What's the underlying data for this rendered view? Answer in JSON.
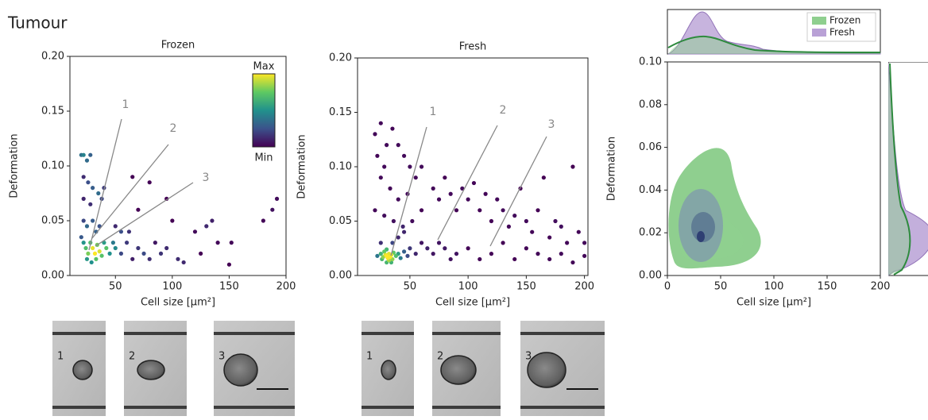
{
  "figure_title": "Tumour",
  "chart_data": [
    {
      "type": "scatter",
      "title": "Frozen",
      "xlabel": "Cell size [μm²]",
      "ylabel": "Deformation",
      "xlim": [
        10,
        200
      ],
      "ylim": [
        0,
        0.2
      ],
      "xticks": [
        50,
        100,
        150,
        200
      ],
      "yticks": [
        {
          "value": 0,
          "label": "0.00"
        },
        0.05,
        {
          "value": 0.1,
          "label": "0.10"
        },
        0.15,
        {
          "value": 0.2,
          "label": "0.20"
        }
      ],
      "colormap": [
        "#440154",
        "#3b528b",
        "#21918c",
        "#5ec962",
        "#fde725"
      ],
      "colorbar_labels": [
        "Max",
        "Min"
      ],
      "annotations": [
        "1",
        "2",
        "3"
      ],
      "x": [
        20,
        22,
        25,
        28,
        22,
        26,
        30,
        22,
        28,
        35,
        38,
        40,
        22,
        25,
        30,
        33,
        36,
        20,
        22,
        24,
        26,
        28,
        30,
        32,
        34,
        36,
        38,
        25,
        29,
        33,
        40,
        42,
        45,
        48,
        50,
        55,
        60,
        62,
        65,
        70,
        75,
        80,
        85,
        90,
        95,
        100,
        80,
        95,
        70,
        110,
        125,
        130,
        135,
        140,
        150,
        152,
        180,
        188,
        192,
        120,
        105,
        65,
        55,
        50
      ],
      "values": [
        0.11,
        0.11,
        0.105,
        0.11,
        0.09,
        0.085,
        0.08,
        0.07,
        0.065,
        0.075,
        0.07,
        0.08,
        0.05,
        0.045,
        0.05,
        0.04,
        0.045,
        0.035,
        0.03,
        0.025,
        0.02,
        0.03,
        0.025,
        0.02,
        0.028,
        0.022,
        0.018,
        0.015,
        0.012,
        0.015,
        0.03,
        0.025,
        0.02,
        0.03,
        0.025,
        0.02,
        0.03,
        0.04,
        0.015,
        0.025,
        0.02,
        0.015,
        0.03,
        0.02,
        0.025,
        0.05,
        0.085,
        0.07,
        0.06,
        0.012,
        0.02,
        0.045,
        0.05,
        0.03,
        0.01,
        0.03,
        0.05,
        0.06,
        0.07,
        0.04,
        0.015,
        0.09,
        0.04,
        0.045
      ]
    },
    {
      "type": "scatter",
      "title": "Fresh",
      "xlabel": "Cell size [μm²]",
      "ylabel": "Deformation",
      "xlim": [
        5,
        203
      ],
      "ylim": [
        0,
        0.2
      ],
      "xticks": [
        50,
        100,
        150,
        200
      ],
      "yticks": [
        {
          "value": 0,
          "label": "0.00"
        },
        0.05,
        {
          "value": 0.1,
          "label": "0.10"
        },
        0.15,
        {
          "value": 0.2,
          "label": "0.20"
        }
      ],
      "colormap": [
        "#440154",
        "#3b528b",
        "#21918c",
        "#5ec962",
        "#fde725"
      ],
      "annotations": [
        "1",
        "2",
        "3"
      ],
      "x": [
        20,
        25,
        30,
        35,
        22,
        28,
        40,
        45,
        50,
        55,
        60,
        25,
        33,
        40,
        48,
        20,
        28,
        36,
        44,
        52,
        60,
        70,
        75,
        80,
        85,
        90,
        95,
        100,
        105,
        110,
        115,
        120,
        125,
        130,
        135,
        140,
        145,
        150,
        155,
        160,
        165,
        170,
        175,
        180,
        185,
        190,
        195,
        200,
        25,
        27,
        29,
        30,
        31,
        32,
        33,
        34,
        35,
        28,
        30,
        32,
        26,
        36,
        38,
        40,
        42,
        45,
        48,
        30,
        34,
        22,
        50,
        55,
        60,
        65,
        70,
        75,
        80,
        85,
        90,
        100,
        110,
        120,
        130,
        140,
        150,
        160,
        170,
        180,
        190,
        200,
        35,
        40,
        25,
        45
      ],
      "values": [
        0.13,
        0.14,
        0.12,
        0.135,
        0.11,
        0.1,
        0.12,
        0.11,
        0.1,
        0.09,
        0.1,
        0.09,
        0.08,
        0.07,
        0.075,
        0.06,
        0.055,
        0.05,
        0.045,
        0.05,
        0.06,
        0.08,
        0.07,
        0.09,
        0.075,
        0.06,
        0.08,
        0.07,
        0.085,
        0.06,
        0.075,
        0.05,
        0.07,
        0.06,
        0.045,
        0.055,
        0.08,
        0.05,
        0.04,
        0.06,
        0.09,
        0.035,
        0.05,
        0.045,
        0.03,
        0.1,
        0.04,
        0.03,
        0.02,
        0.017,
        0.019,
        0.018,
        0.016,
        0.02,
        0.017,
        0.019,
        0.015,
        0.022,
        0.024,
        0.014,
        0.015,
        0.021,
        0.018,
        0.02,
        0.016,
        0.022,
        0.018,
        0.012,
        0.012,
        0.018,
        0.025,
        0.02,
        0.03,
        0.025,
        0.02,
        0.03,
        0.025,
        0.015,
        0.02,
        0.025,
        0.015,
        0.02,
        0.03,
        0.015,
        0.025,
        0.02,
        0.015,
        0.02,
        0.012,
        0.018,
        0.03,
        0.035,
        0.03,
        0.04
      ]
    },
    {
      "type": "kde",
      "xlabel": "Cell size [μm²]",
      "ylabel": "Deformation",
      "xlim": [
        0,
        200
      ],
      "ylim": [
        0,
        0.1
      ],
      "xticks": [
        0,
        50,
        100,
        150,
        200
      ],
      "yticks": [
        {
          "value": 0,
          "label": "0.00"
        },
        0.02,
        0.04,
        0.06,
        0.08,
        {
          "value": 0.1,
          "label": "0.10"
        }
      ],
      "legend": "upper right",
      "series": [
        {
          "name": "Frozen",
          "color": "#8fcf8f"
        },
        {
          "name": "Fresh",
          "color": "#b9a1d6"
        }
      ]
    }
  ],
  "micrographs": [
    [
      "1",
      "2",
      "3"
    ],
    [
      "1",
      "2",
      "3"
    ]
  ]
}
